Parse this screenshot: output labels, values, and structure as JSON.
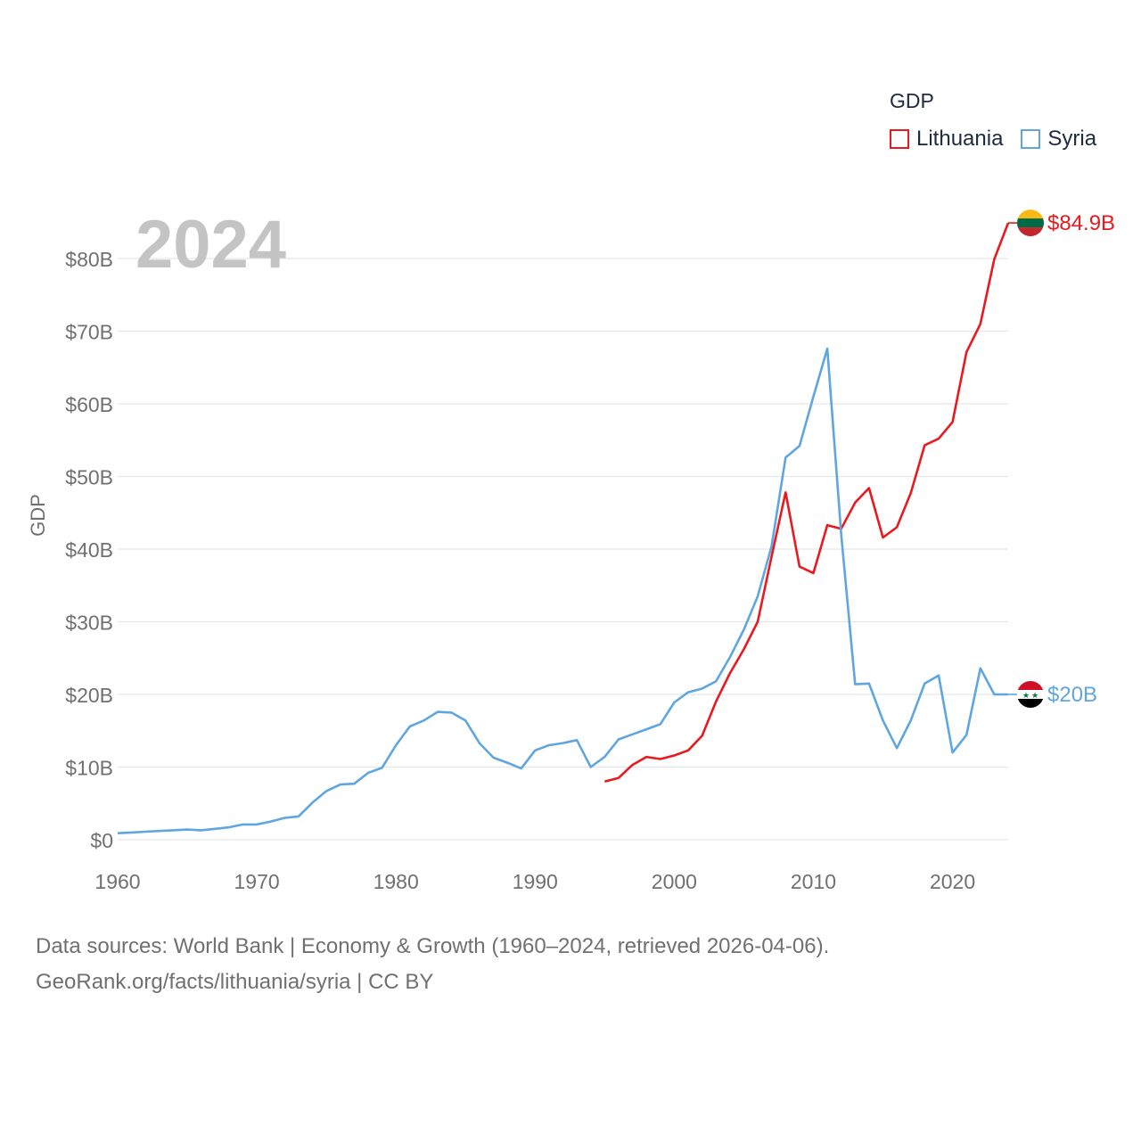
{
  "legend": {
    "title": "GDP",
    "items": [
      {
        "label": "Lithuania",
        "color": "#e8191f"
      },
      {
        "label": "Syria",
        "color": "#5fa6e0"
      }
    ]
  },
  "footer": {
    "line1": "Data sources: World Bank | Economy & Growth (1960–2024, retrieved 2026-04-06).",
    "line2": "GeoRank.org/facts/lithuania/syria | CC BY"
  },
  "chart_data": {
    "type": "line",
    "title": "GDP",
    "year_label": "2024",
    "xlabel": "",
    "ylabel": "GDP",
    "xlim": [
      1960,
      2024
    ],
    "ylim": [
      0,
      80
    ],
    "y_unit": "billion USD",
    "grid": true,
    "legend_position": "top-right",
    "x_ticks": [
      1960,
      1970,
      1980,
      1990,
      2000,
      2010,
      2020
    ],
    "y_ticks": [
      0,
      10,
      20,
      30,
      40,
      50,
      60,
      70,
      80
    ],
    "y_tick_labels": [
      "$0",
      "$10B",
      "$20B",
      "$30B",
      "$40B",
      "$50B",
      "$60B",
      "$70B",
      "$80B"
    ],
    "series": [
      {
        "name": "Lithuania",
        "color": "#e8191f",
        "end_label": "$84.9B",
        "flag": "lithuania-flag-icon",
        "x": [
          1995,
          1996,
          1997,
          1998,
          1999,
          2000,
          2001,
          2002,
          2003,
          2004,
          2005,
          2006,
          2007,
          2008,
          2009,
          2010,
          2011,
          2012,
          2013,
          2014,
          2015,
          2016,
          2017,
          2018,
          2019,
          2020,
          2021,
          2022,
          2023,
          2024
        ],
        "values": [
          8.0,
          8.5,
          10.3,
          11.4,
          11.1,
          11.6,
          12.3,
          14.3,
          19.0,
          22.9,
          26.2,
          30.0,
          39.0,
          47.8,
          37.6,
          36.7,
          43.3,
          42.8,
          46.4,
          48.4,
          41.6,
          43.0,
          47.7,
          54.3,
          55.2,
          57.5,
          67.1,
          71.0,
          79.9,
          84.9
        ]
      },
      {
        "name": "Syria",
        "color": "#5fa6e0",
        "end_label": "$20B",
        "flag": "syria-flag-icon",
        "x": [
          1960,
          1961,
          1962,
          1963,
          1964,
          1965,
          1966,
          1967,
          1968,
          1969,
          1970,
          1971,
          1972,
          1973,
          1974,
          1975,
          1976,
          1977,
          1978,
          1979,
          1980,
          1981,
          1982,
          1983,
          1984,
          1985,
          1986,
          1987,
          1988,
          1989,
          1990,
          1991,
          1992,
          1993,
          1994,
          1995,
          1996,
          1997,
          1998,
          1999,
          2000,
          2001,
          2002,
          2003,
          2004,
          2005,
          2006,
          2007,
          2008,
          2009,
          2010,
          2011,
          2012,
          2013,
          2014,
          2015,
          2016,
          2017,
          2018,
          2019,
          2020,
          2021,
          2022,
          2023,
          2024
        ],
        "values": [
          0.9,
          1.0,
          1.1,
          1.2,
          1.3,
          1.4,
          1.3,
          1.5,
          1.7,
          2.1,
          2.1,
          2.5,
          3.0,
          3.2,
          5.1,
          6.7,
          7.6,
          7.7,
          9.2,
          9.9,
          13.0,
          15.6,
          16.4,
          17.6,
          17.5,
          16.4,
          13.3,
          11.3,
          10.6,
          9.8,
          12.3,
          13.0,
          13.3,
          13.7,
          10.0,
          11.4,
          13.8,
          14.5,
          15.2,
          15.9,
          18.9,
          20.3,
          20.8,
          21.8,
          25.1,
          28.9,
          33.5,
          40.4,
          52.6,
          54.2,
          61.0,
          67.6,
          42.0,
          21.4,
          21.5,
          16.4,
          12.6,
          16.4,
          21.5,
          22.6,
          12.0,
          14.4,
          23.6,
          20.0,
          20.0
        ]
      }
    ]
  }
}
